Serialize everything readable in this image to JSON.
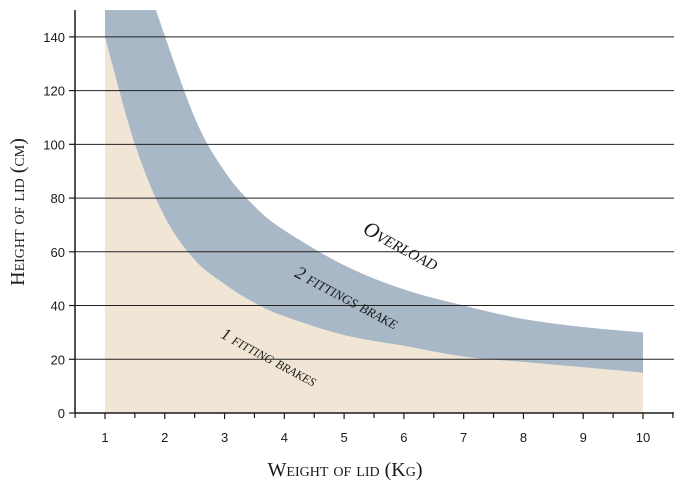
{
  "chart_data": {
    "type": "area",
    "xlabel": "Weight of lid (Kg)",
    "ylabel": "Height of lid (cm)",
    "xlim": [
      0.5,
      10.5
    ],
    "ylim": [
      0,
      150
    ],
    "x_ticks": [
      1,
      2,
      3,
      4,
      5,
      6,
      7,
      8,
      9,
      10
    ],
    "y_ticks": [
      0,
      20,
      40,
      60,
      80,
      100,
      120,
      140
    ],
    "grid": "horizontal",
    "colors": {
      "one_fitting": "#f1e6d6",
      "two_fittings": "#a9b8c7",
      "grid": "#222222",
      "text": "#1a1a1a"
    },
    "series": [
      {
        "label": "1 fitting brakes",
        "lower": [
          [
            1,
            0
          ],
          [
            10,
            0
          ]
        ],
        "upper": [
          [
            1,
            140
          ],
          [
            1.5,
            100
          ],
          [
            2,
            73
          ],
          [
            2.5,
            57
          ],
          [
            3,
            48
          ],
          [
            3.5,
            41
          ],
          [
            4,
            36
          ],
          [
            5,
            29
          ],
          [
            6,
            25
          ],
          [
            7,
            21
          ],
          [
            8,
            19
          ],
          [
            9,
            17
          ],
          [
            10,
            15
          ]
        ]
      },
      {
        "label": "2 fittings brake",
        "lower": [
          [
            1,
            140
          ],
          [
            1.5,
            100
          ],
          [
            2,
            73
          ],
          [
            2.5,
            57
          ],
          [
            3,
            48
          ],
          [
            3.5,
            41
          ],
          [
            4,
            36
          ],
          [
            5,
            29
          ],
          [
            6,
            25
          ],
          [
            7,
            21
          ],
          [
            8,
            19
          ],
          [
            9,
            17
          ],
          [
            10,
            15
          ]
        ],
        "upper": [
          [
            1.85,
            150
          ],
          [
            2.5,
            110
          ],
          [
            3,
            90
          ],
          [
            3.5,
            77
          ],
          [
            4,
            68
          ],
          [
            5,
            55
          ],
          [
            6,
            46
          ],
          [
            7,
            40
          ],
          [
            8,
            35
          ],
          [
            9,
            32
          ],
          [
            10,
            30
          ]
        ]
      }
    ],
    "annotations": [
      {
        "text": "Overload",
        "x": 5.9,
        "y": 60,
        "angle": 28
      },
      {
        "text": "2 fittings brake",
        "x": 5.0,
        "y": 41,
        "angle": 28
      },
      {
        "text": "1 fitting brakes",
        "x": 3.7,
        "y": 19,
        "angle": 28
      }
    ]
  }
}
